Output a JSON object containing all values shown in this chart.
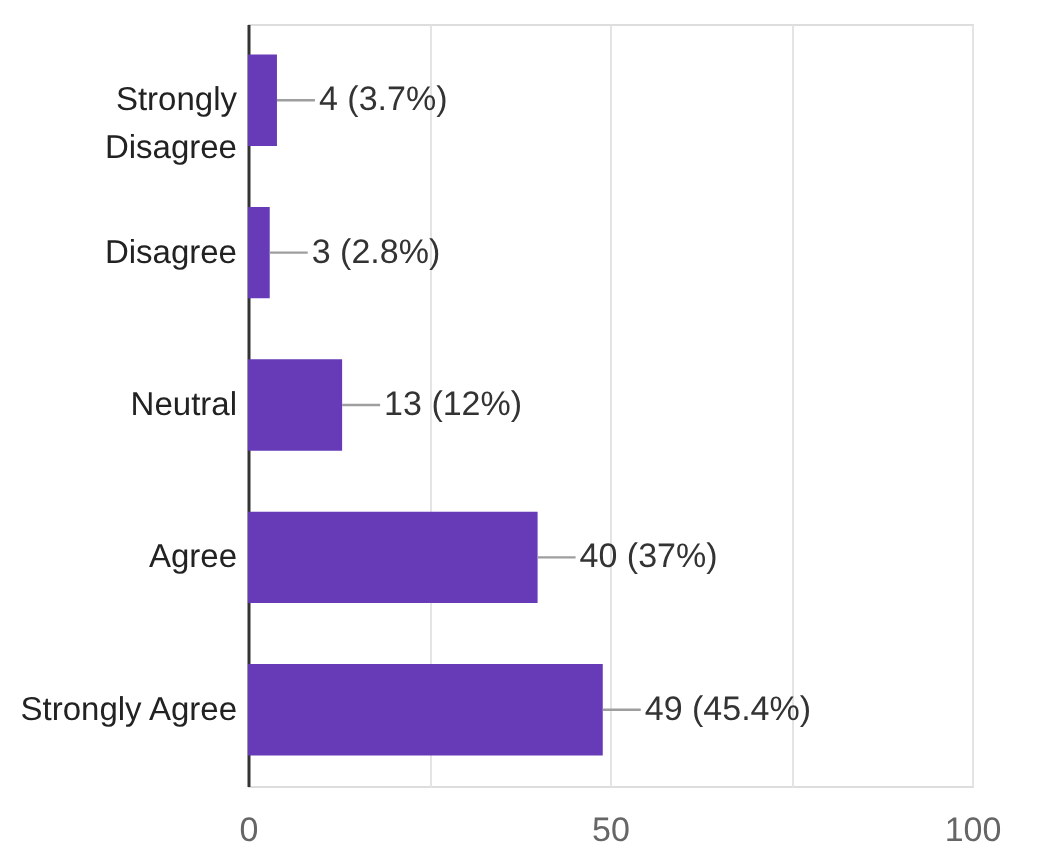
{
  "chart_data": {
    "type": "bar",
    "orientation": "horizontal",
    "categories": [
      "Strongly Disagree",
      "Disagree",
      "Neutral",
      "Agree",
      "Strongly Agree"
    ],
    "values": [
      4,
      3,
      13,
      40,
      49
    ],
    "color": "#673ab7",
    "value_labels": [
      "4 (3.7%)",
      "3 (2.8%)",
      "13 (12%)",
      "40 (37%)",
      "49 (45.4%)"
    ],
    "xlim": [
      0,
      100
    ],
    "xticks": [
      0,
      {
        "value": 25,
        "label": null
      },
      50,
      {
        "value": 75,
        "label": null
      },
      100
    ],
    "grid": "x"
  }
}
